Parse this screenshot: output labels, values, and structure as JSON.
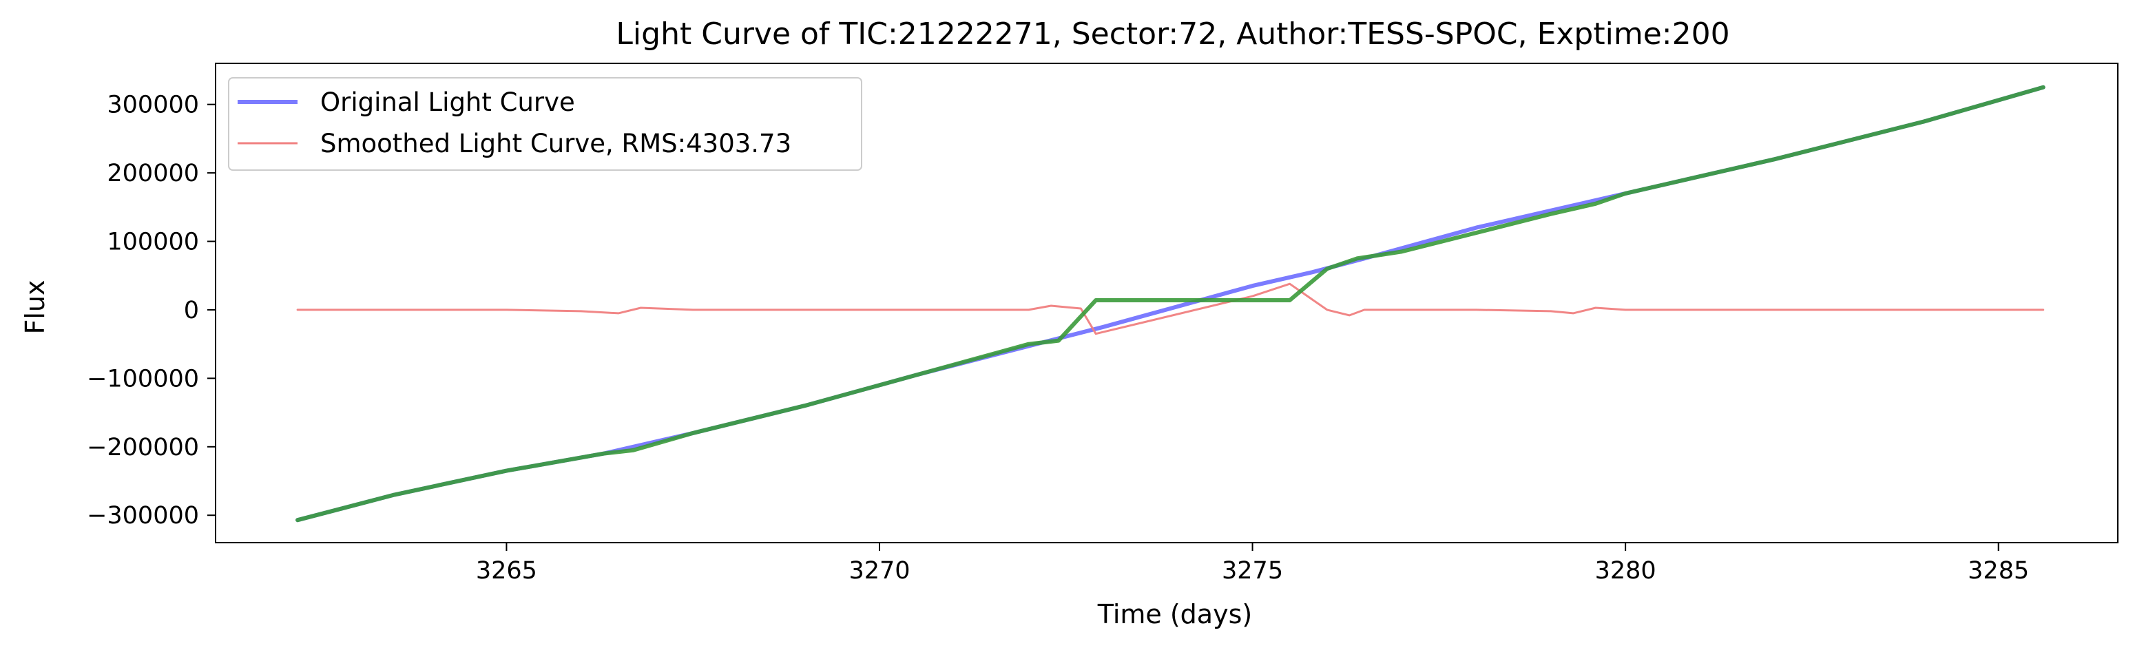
{
  "chart_data": {
    "type": "line",
    "title": "Light Curve of TIC:21222271, Sector:72, Author:TESS-SPOC, Exptime:200",
    "xlabel": "Time (days)",
    "ylabel": "Flux",
    "xlim": [
      3261.1,
      3286.6
    ],
    "ylim": [
      -340000,
      360000
    ],
    "xticks": [
      3265,
      3270,
      3275,
      3280,
      3285
    ],
    "yticks": [
      -300000,
      -200000,
      -100000,
      0,
      100000,
      200000,
      300000
    ],
    "xtick_labels": [
      "3265",
      "3270",
      "3275",
      "3280",
      "3285"
    ],
    "ytick_labels": [
      "−300000",
      "−200000",
      "−100000",
      "0",
      "100000",
      "200000",
      "300000"
    ],
    "grid": false,
    "legend_position": "upper-left",
    "series": [
      {
        "name": "Original Light Curve",
        "color": "#7b7bff",
        "x": [
          3262.2,
          3263.5,
          3265.0,
          3266.3,
          3267.5,
          3269.0,
          3270.5,
          3272.1,
          3273.0,
          3274.0,
          3275.0,
          3275.8,
          3276.5,
          3278.0,
          3280.0,
          3282.0,
          3284.0,
          3285.6
        ],
        "y": [
          -307000,
          -270000,
          -235000,
          -210000,
          -180000,
          -140000,
          -95000,
          -50000,
          -25000,
          5000,
          35000,
          55000,
          75000,
          120000,
          170000,
          220000,
          275000,
          325000
        ]
      },
      {
        "name": "Smoothed Light Curve, RMS:4303.73",
        "color": "#f08080",
        "x": [
          3262.2,
          3265.0,
          3266.0,
          3266.5,
          3266.8,
          3267.5,
          3270.0,
          3272.0,
          3272.3,
          3272.7,
          3272.9,
          3275.0,
          3275.5,
          3276.0,
          3276.3,
          3276.5,
          3278.0,
          3279.0,
          3279.3,
          3279.6,
          3280.0,
          3283.0,
          3285.6
        ],
        "y": [
          0,
          0,
          -2000,
          -5000,
          3000,
          0,
          0,
          0,
          6000,
          2000,
          -35000,
          20000,
          38000,
          0,
          -8000,
          0,
          0,
          -2000,
          -5000,
          3000,
          0,
          0,
          0
        ]
      },
      {
        "color": "#3a9a3a",
        "x": [
          3262.2,
          3263.5,
          3265.0,
          3266.3,
          3266.7,
          3267.5,
          3269.0,
          3270.5,
          3272.0,
          3272.4,
          3272.9,
          3273.5,
          3275.0,
          3275.5,
          3276.0,
          3276.4,
          3277.0,
          3279.0,
          3279.6,
          3280.0,
          3282.0,
          3284.0,
          3285.6
        ],
        "y": [
          -307000,
          -270000,
          -235000,
          -210000,
          -205000,
          -180000,
          -140000,
          -95000,
          -50000,
          -45000,
          14000,
          14000,
          14000,
          14000,
          60000,
          75000,
          85000,
          140000,
          155000,
          170000,
          220000,
          275000,
          325000
        ]
      }
    ]
  }
}
